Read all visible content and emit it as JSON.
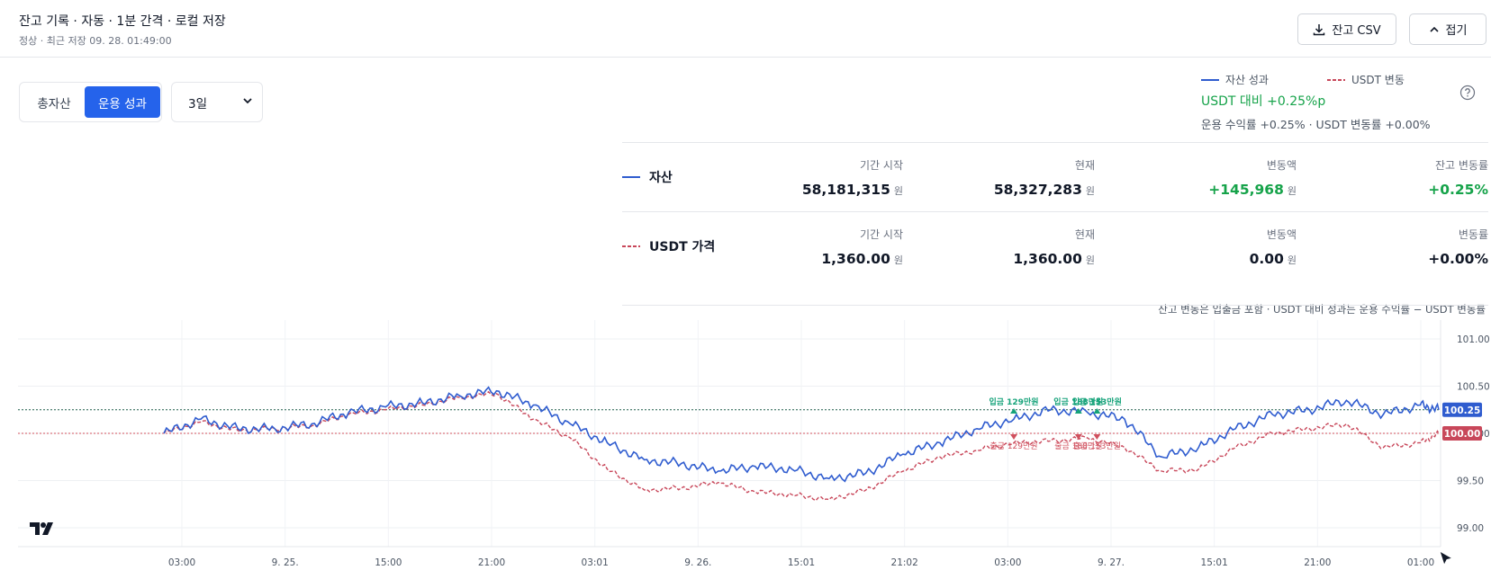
{
  "header": {
    "title": "잔고 기록 · 자동 · 1분 간격 · 로컬 저장",
    "subtitle": "정상 · 최근 저장 09. 28. 01:49:00",
    "csv_button": "잔고 CSV",
    "fold_button": "접기",
    "csv_icon": "download-icon",
    "fold_icon": "chevron-up-icon"
  },
  "controls": {
    "mode_tabs": [
      {
        "label": "총자산",
        "active": false
      },
      {
        "label": "운용 성과",
        "active": true
      }
    ],
    "range_value": "3일"
  },
  "legend": {
    "asset_label": "자산 성과",
    "usdt_label": "USDT 변동",
    "vs_text": "USDT 대비 +0.25%p",
    "detail_text": "운용 수익률 +0.25% · USDT 변동률 +0.00%"
  },
  "stats": {
    "asset": {
      "name": "자산",
      "start_label": "기간 시작",
      "start_value": "58,181,315",
      "current_label": "현재",
      "current_value": "58,327,283",
      "change_label": "변동액",
      "change_value": "+145,968",
      "rate_label": "잔고 변동률",
      "rate_value": "+0.25%"
    },
    "usdt": {
      "name": "USDT 가격",
      "start_label": "기간 시작",
      "start_value": "1,360.00",
      "current_label": "현재",
      "current_value": "1,360.00",
      "change_label": "변동액",
      "change_value": "0.00",
      "rate_label": "변동률",
      "rate_value": "+0.00%"
    },
    "unit": "원",
    "note": "잔고 변동은 입출금 포함 · USDT 대비 성과는 운용 수익률 − USDT 변동률"
  },
  "colors": {
    "accent": "#2563eb",
    "asset_line": "#2f5ccf",
    "usdt_line": "#c8475a",
    "positive": "#16a34a",
    "deposit_marker": "#16a37a",
    "withdraw_marker": "#d0505e"
  },
  "chart_data": {
    "type": "line",
    "ylim": [
      98.8,
      101.2
    ],
    "y_ticks": [
      "101.00",
      "100.50",
      "100.00",
      "99.50",
      "99.00"
    ],
    "x_ticks": [
      "03:00",
      "9. 25.",
      "15:00",
      "21:00",
      "03:01",
      "9. 26.",
      "15:01",
      "21:02",
      "03:00",
      "9. 27.",
      "15:01",
      "21:00",
      "01:00"
    ],
    "last_value_labels": {
      "asset": "100.25",
      "usdt": "100.00"
    },
    "series": [
      {
        "name": "자산 성과",
        "style": "solid",
        "x": [
          0,
          2,
          4,
          6,
          8,
          10,
          12,
          14,
          16,
          18,
          20,
          22,
          24,
          26,
          28,
          30,
          32,
          34,
          36,
          38,
          40,
          42,
          44,
          46,
          48,
          50,
          52,
          54,
          56,
          58,
          60,
          62,
          64,
          66,
          68,
          69
        ],
        "values": [
          100.0,
          100.15,
          100.05,
          100.05,
          100.1,
          100.22,
          100.28,
          100.32,
          100.4,
          100.45,
          100.3,
          100.1,
          99.9,
          99.72,
          99.68,
          99.6,
          99.65,
          99.62,
          99.52,
          99.58,
          99.78,
          99.9,
          100.05,
          100.15,
          100.25,
          100.22,
          100.15,
          99.75,
          99.85,
          100.05,
          100.2,
          100.25,
          100.35,
          100.2,
          100.3,
          100.25
        ]
      },
      {
        "name": "USDT 변동",
        "style": "dashed",
        "x": [
          0,
          2,
          4,
          6,
          8,
          10,
          12,
          14,
          16,
          18,
          20,
          22,
          24,
          26,
          28,
          30,
          32,
          34,
          36,
          38,
          40,
          42,
          44,
          46,
          48,
          50,
          52,
          54,
          56,
          58,
          60,
          62,
          64,
          66,
          68,
          69
        ],
        "values": [
          100.0,
          100.12,
          100.03,
          100.05,
          100.08,
          100.2,
          100.25,
          100.3,
          100.38,
          100.42,
          100.15,
          99.95,
          99.62,
          99.4,
          99.42,
          99.48,
          99.38,
          99.35,
          99.3,
          99.4,
          99.6,
          99.75,
          99.82,
          99.9,
          99.92,
          99.95,
          99.85,
          99.6,
          99.62,
          99.85,
          100.0,
          100.05,
          100.1,
          99.85,
          99.9,
          100.0
        ]
      }
    ],
    "markers": [
      {
        "type": "deposit",
        "text": "입금 129만원",
        "x": 46
      },
      {
        "type": "deposit",
        "text": "입금 188만원",
        "x": 49.5
      },
      {
        "type": "deposit",
        "text": "입금 153만원",
        "x": 50.5
      },
      {
        "type": "withdraw",
        "text": "출금 129만원",
        "x": 46
      },
      {
        "type": "withdraw",
        "text": "출금 188만원",
        "x": 49.5
      },
      {
        "type": "withdraw",
        "text": "출금 153만원",
        "x": 50.5
      }
    ],
    "grid": true
  }
}
